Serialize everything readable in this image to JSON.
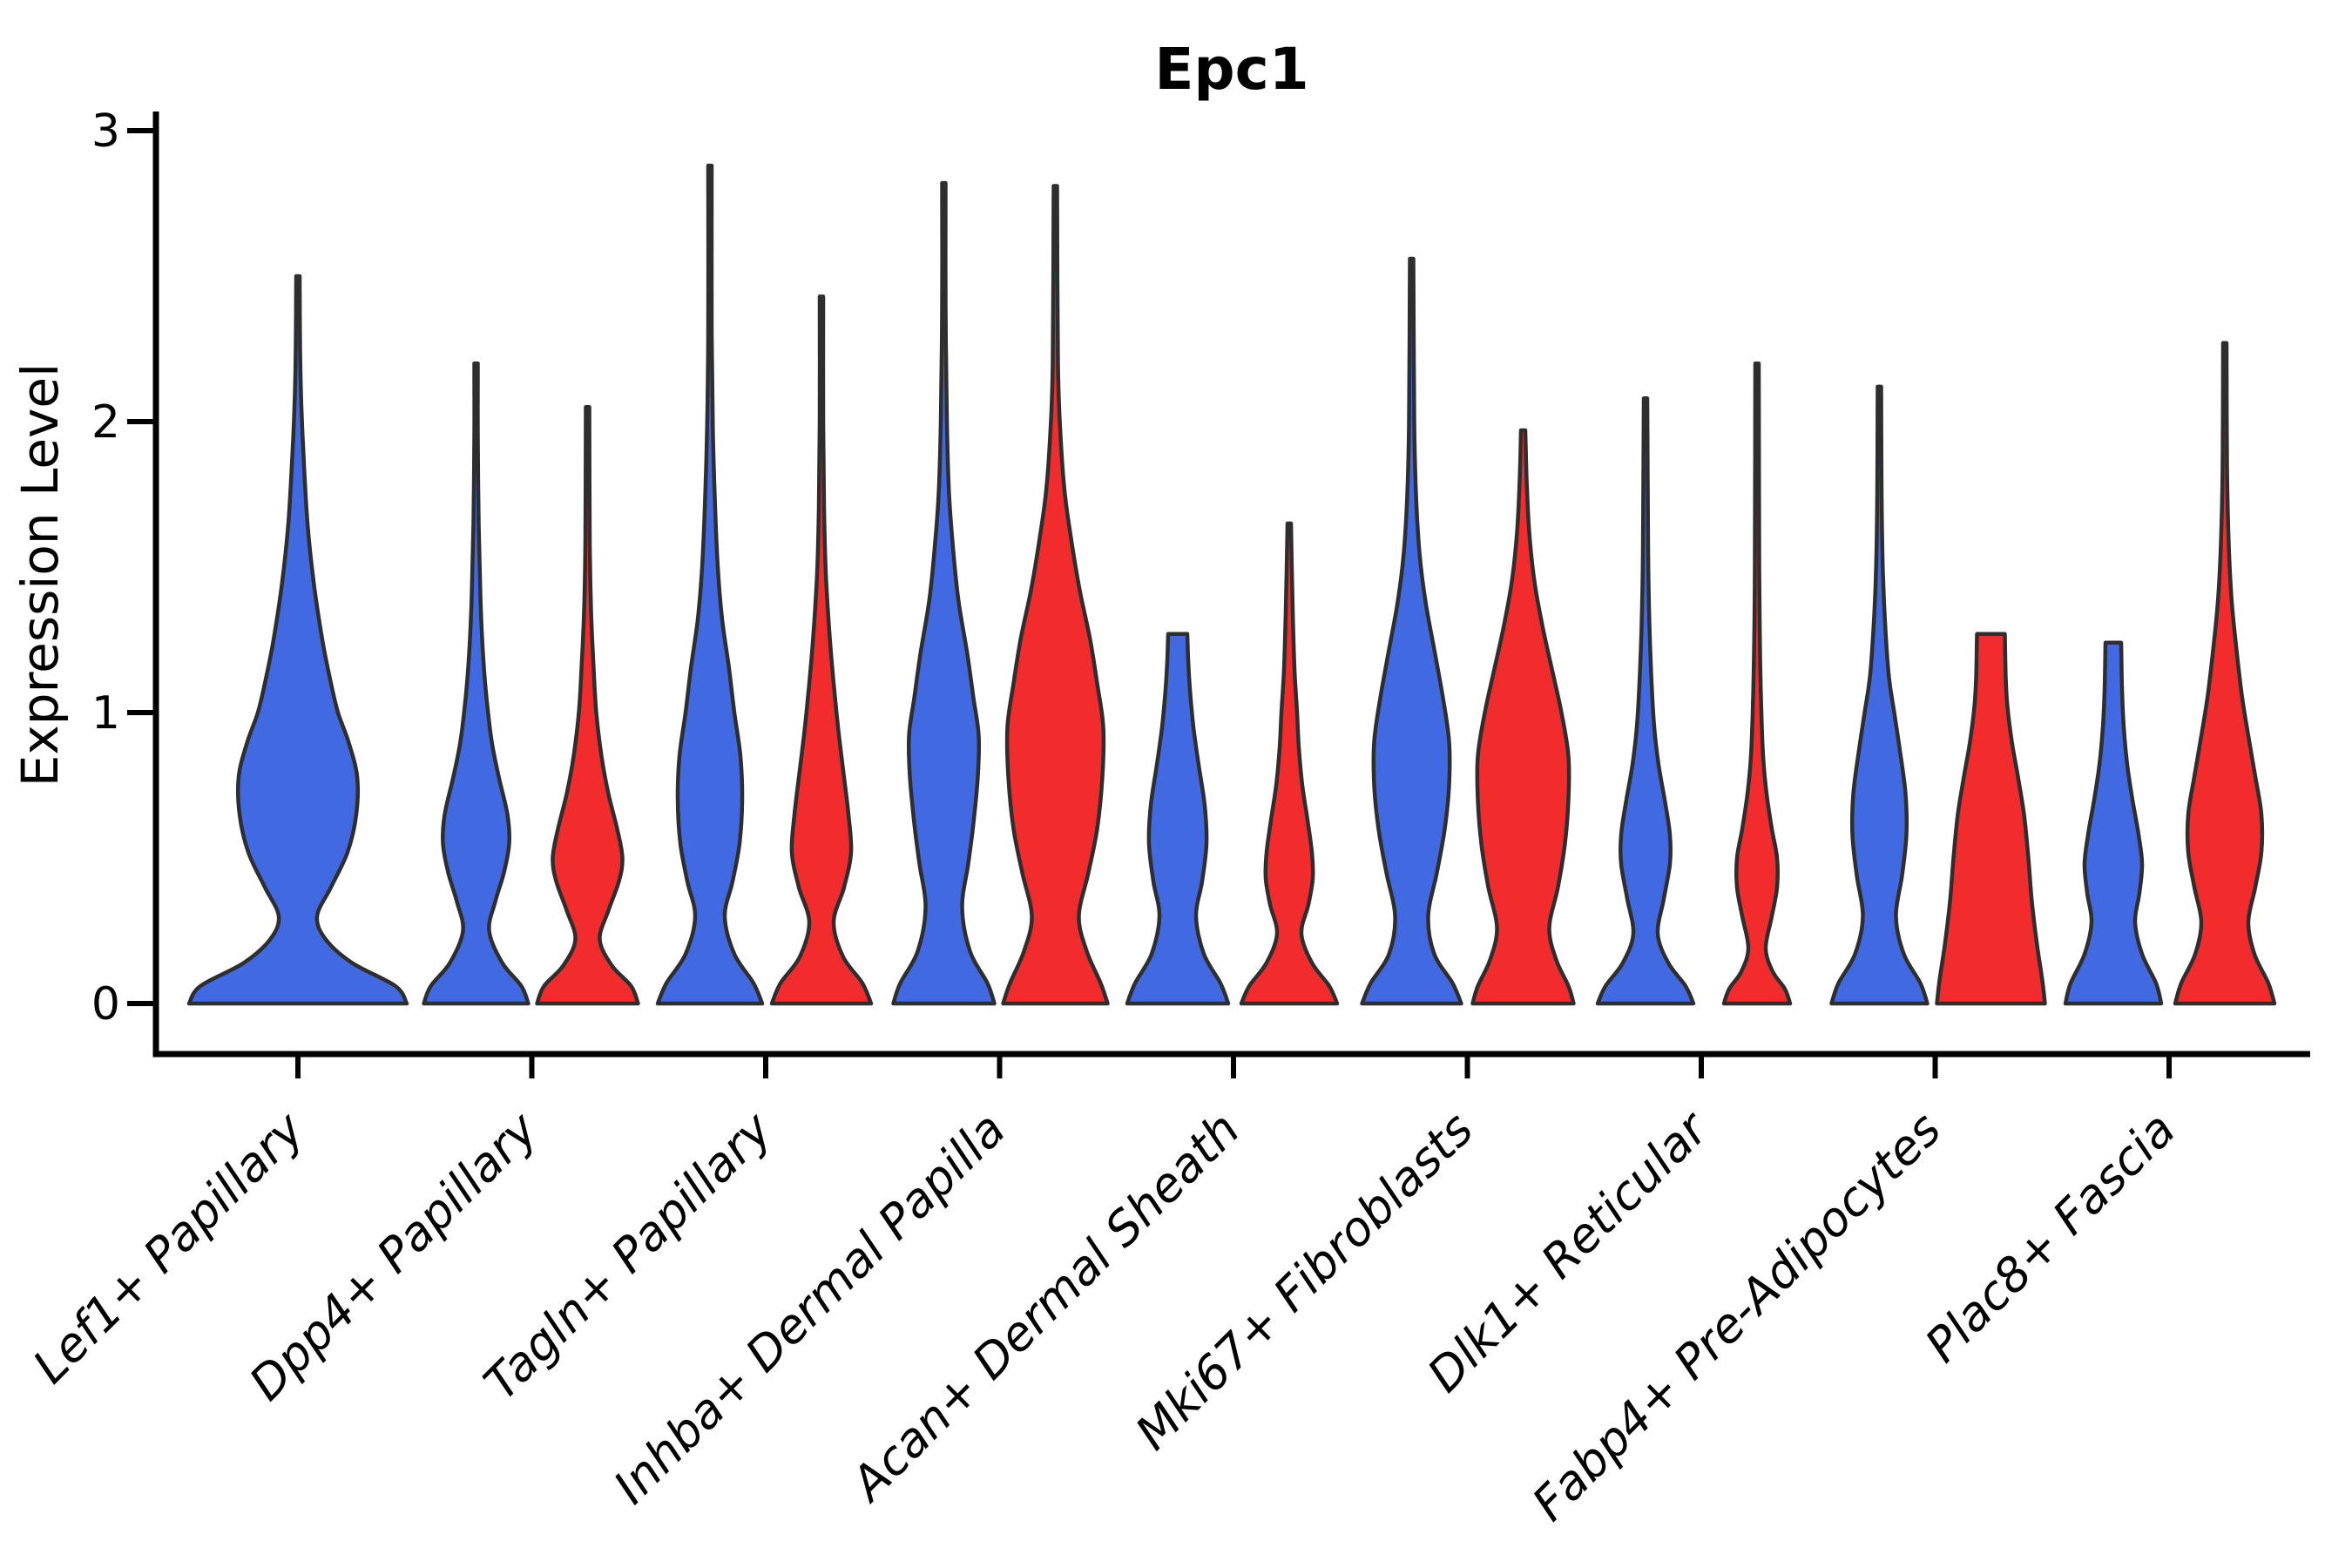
{
  "chart_data": {
    "type": "violin",
    "title": "Epc1",
    "ylabel": "Expression Level",
    "xlabel": "",
    "ylim": [
      0,
      3
    ],
    "yticks": [
      "0",
      "1",
      "2",
      "3"
    ],
    "grid": false,
    "legend": "none",
    "categories": [
      "Lef1+ Papillary",
      "Dpp4+ Papillary",
      "Tagln+ Papillary",
      "Inhba+ Dermal Papilla",
      "Acan+ Dermal Sheath",
      "Mki67+ Fibroblasts",
      "Dlk1+ Reticular",
      "Fabp4+ Pre-Adipocytes",
      "Plac8+ Fascia"
    ],
    "groups": [
      "blue",
      "red"
    ],
    "colors": {
      "blue": "#4169E1",
      "red": "#F22C2C",
      "outline": "#2E2E2E",
      "axis": "#000000",
      "background": "#FFFFFF"
    },
    "violins": [
      {
        "category": 0,
        "group": "blue",
        "side": "center",
        "max_value": 2.5,
        "flat_top": false,
        "profile": [
          [
            0,
            125
          ],
          [
            0.06,
            112
          ],
          [
            0.14,
            62
          ],
          [
            0.22,
            32
          ],
          [
            0.3,
            22
          ],
          [
            0.4,
            38
          ],
          [
            0.52,
            57
          ],
          [
            0.65,
            67
          ],
          [
            0.78,
            68
          ],
          [
            0.9,
            58
          ],
          [
            1.0,
            46
          ],
          [
            1.1,
            38
          ],
          [
            1.25,
            28
          ],
          [
            1.45,
            18
          ],
          [
            1.65,
            11
          ],
          [
            1.85,
            7
          ],
          [
            2.05,
            4
          ],
          [
            2.25,
            2.5
          ],
          [
            2.5,
            2
          ]
        ]
      },
      {
        "category": 1,
        "group": "blue",
        "side": "left",
        "max_value": 2.2,
        "flat_top": false,
        "profile": [
          [
            0,
            60
          ],
          [
            0.06,
            52
          ],
          [
            0.14,
            30
          ],
          [
            0.25,
            15
          ],
          [
            0.35,
            22
          ],
          [
            0.45,
            32
          ],
          [
            0.55,
            38
          ],
          [
            0.65,
            36
          ],
          [
            0.78,
            26
          ],
          [
            0.9,
            18
          ],
          [
            1.05,
            12
          ],
          [
            1.2,
            8
          ],
          [
            1.4,
            5
          ],
          [
            1.65,
            3
          ],
          [
            1.95,
            2
          ],
          [
            2.2,
            2
          ]
        ]
      },
      {
        "category": 1,
        "group": "red",
        "side": "right",
        "max_value": 2.05,
        "flat_top": false,
        "profile": [
          [
            0,
            58
          ],
          [
            0.06,
            50
          ],
          [
            0.13,
            28
          ],
          [
            0.22,
            14
          ],
          [
            0.32,
            24
          ],
          [
            0.42,
            36
          ],
          [
            0.5,
            40
          ],
          [
            0.6,
            34
          ],
          [
            0.72,
            24
          ],
          [
            0.85,
            16
          ],
          [
            1.0,
            10
          ],
          [
            1.15,
            7
          ],
          [
            1.35,
            4
          ],
          [
            1.6,
            2.5
          ],
          [
            2.05,
            2
          ]
        ]
      },
      {
        "category": 2,
        "group": "blue",
        "side": "left",
        "max_value": 2.88,
        "flat_top": false,
        "profile": [
          [
            0,
            60
          ],
          [
            0.07,
            50
          ],
          [
            0.17,
            28
          ],
          [
            0.3,
            17
          ],
          [
            0.42,
            26
          ],
          [
            0.55,
            34
          ],
          [
            0.7,
            37
          ],
          [
            0.85,
            35
          ],
          [
            1.0,
            28
          ],
          [
            1.15,
            22
          ],
          [
            1.32,
            14
          ],
          [
            1.5,
            9
          ],
          [
            1.7,
            6
          ],
          [
            1.95,
            3.5
          ],
          [
            2.3,
            2
          ],
          [
            2.88,
            2
          ]
        ]
      },
      {
        "category": 2,
        "group": "red",
        "side": "right",
        "max_value": 2.43,
        "flat_top": false,
        "profile": [
          [
            0,
            57
          ],
          [
            0.07,
            47
          ],
          [
            0.16,
            25
          ],
          [
            0.28,
            14
          ],
          [
            0.4,
            26
          ],
          [
            0.52,
            34
          ],
          [
            0.65,
            31
          ],
          [
            0.8,
            25
          ],
          [
            0.95,
            19
          ],
          [
            1.1,
            14
          ],
          [
            1.28,
            9
          ],
          [
            1.48,
            5
          ],
          [
            1.7,
            3
          ],
          [
            2.0,
            2
          ],
          [
            2.43,
            2
          ]
        ]
      },
      {
        "category": 3,
        "group": "blue",
        "side": "left",
        "max_value": 2.82,
        "flat_top": false,
        "profile": [
          [
            0,
            58
          ],
          [
            0.07,
            50
          ],
          [
            0.18,
            30
          ],
          [
            0.33,
            21
          ],
          [
            0.48,
            28
          ],
          [
            0.62,
            34
          ],
          [
            0.78,
            39
          ],
          [
            0.92,
            40
          ],
          [
            1.05,
            34
          ],
          [
            1.2,
            27
          ],
          [
            1.38,
            17
          ],
          [
            1.55,
            11
          ],
          [
            1.75,
            6
          ],
          [
            2.0,
            3.5
          ],
          [
            2.4,
            2
          ],
          [
            2.82,
            2
          ]
        ]
      },
      {
        "category": 3,
        "group": "red",
        "side": "right",
        "max_value": 2.81,
        "flat_top": false,
        "profile": [
          [
            0,
            60
          ],
          [
            0.07,
            52
          ],
          [
            0.18,
            36
          ],
          [
            0.3,
            27
          ],
          [
            0.45,
            38
          ],
          [
            0.6,
            48
          ],
          [
            0.78,
            54
          ],
          [
            0.95,
            55
          ],
          [
            1.1,
            48
          ],
          [
            1.25,
            40
          ],
          [
            1.42,
            28
          ],
          [
            1.58,
            19
          ],
          [
            1.75,
            11
          ],
          [
            1.95,
            6
          ],
          [
            2.2,
            3
          ],
          [
            2.81,
            2
          ]
        ]
      },
      {
        "category": 4,
        "group": "blue",
        "side": "left",
        "max_value": 1.27,
        "flat_top": true,
        "profile": [
          [
            0,
            58
          ],
          [
            0.07,
            49
          ],
          [
            0.17,
            30
          ],
          [
            0.3,
            21
          ],
          [
            0.42,
            28
          ],
          [
            0.55,
            33
          ],
          [
            0.68,
            31
          ],
          [
            0.82,
            24
          ],
          [
            0.95,
            18
          ],
          [
            1.08,
            14
          ],
          [
            1.18,
            12
          ],
          [
            1.27,
            11
          ]
        ]
      },
      {
        "category": 4,
        "group": "red",
        "side": "right",
        "max_value": 1.65,
        "flat_top": false,
        "profile": [
          [
            0,
            55
          ],
          [
            0.06,
            46
          ],
          [
            0.14,
            26
          ],
          [
            0.24,
            14
          ],
          [
            0.34,
            22
          ],
          [
            0.43,
            27
          ],
          [
            0.52,
            26
          ],
          [
            0.63,
            21
          ],
          [
            0.75,
            15
          ],
          [
            0.88,
            11
          ],
          [
            1.0,
            9
          ],
          [
            1.15,
            6
          ],
          [
            1.35,
            4
          ],
          [
            1.65,
            2
          ]
        ]
      },
      {
        "category": 5,
        "group": "blue",
        "side": "left",
        "max_value": 2.56,
        "flat_top": false,
        "profile": [
          [
            0,
            57
          ],
          [
            0.07,
            47
          ],
          [
            0.17,
            26
          ],
          [
            0.3,
            19
          ],
          [
            0.45,
            29
          ],
          [
            0.6,
            38
          ],
          [
            0.75,
            43
          ],
          [
            0.9,
            43
          ],
          [
            1.05,
            36
          ],
          [
            1.2,
            27
          ],
          [
            1.38,
            16
          ],
          [
            1.55,
            9
          ],
          [
            1.75,
            5
          ],
          [
            2.0,
            3
          ],
          [
            2.56,
            2
          ]
        ]
      },
      {
        "category": 5,
        "group": "red",
        "side": "right",
        "max_value": 1.97,
        "flat_top": false,
        "profile": [
          [
            0,
            58
          ],
          [
            0.06,
            52
          ],
          [
            0.15,
            38
          ],
          [
            0.26,
            30
          ],
          [
            0.4,
            40
          ],
          [
            0.55,
            48
          ],
          [
            0.7,
            52
          ],
          [
            0.85,
            52
          ],
          [
            1.0,
            44
          ],
          [
            1.15,
            33
          ],
          [
            1.3,
            22
          ],
          [
            1.45,
            13
          ],
          [
            1.62,
            7
          ],
          [
            1.8,
            4
          ],
          [
            1.97,
            2.5
          ]
        ]
      },
      {
        "category": 6,
        "group": "blue",
        "side": "left",
        "max_value": 2.08,
        "flat_top": false,
        "profile": [
          [
            0,
            55
          ],
          [
            0.06,
            46
          ],
          [
            0.14,
            26
          ],
          [
            0.24,
            14
          ],
          [
            0.36,
            21
          ],
          [
            0.48,
            28
          ],
          [
            0.58,
            28
          ],
          [
            0.7,
            22
          ],
          [
            0.82,
            15
          ],
          [
            0.95,
            10
          ],
          [
            1.1,
            7
          ],
          [
            1.3,
            4.5
          ],
          [
            1.55,
            3
          ],
          [
            2.08,
            2
          ]
        ]
      },
      {
        "category": 6,
        "group": "red",
        "side": "right",
        "max_value": 2.2,
        "flat_top": false,
        "profile": [
          [
            0,
            38
          ],
          [
            0.05,
            32
          ],
          [
            0.11,
            18
          ],
          [
            0.19,
            10
          ],
          [
            0.3,
            17
          ],
          [
            0.4,
            23
          ],
          [
            0.5,
            23
          ],
          [
            0.6,
            17
          ],
          [
            0.72,
            11
          ],
          [
            0.85,
            7
          ],
          [
            1.0,
            5
          ],
          [
            1.2,
            3.5
          ],
          [
            1.5,
            2.5
          ],
          [
            2.2,
            2
          ]
        ]
      },
      {
        "category": 7,
        "group": "blue",
        "side": "left",
        "max_value": 2.12,
        "flat_top": false,
        "profile": [
          [
            0,
            55
          ],
          [
            0.07,
            47
          ],
          [
            0.17,
            28
          ],
          [
            0.3,
            19
          ],
          [
            0.44,
            26
          ],
          [
            0.58,
            31
          ],
          [
            0.72,
            30
          ],
          [
            0.86,
            24
          ],
          [
            1.0,
            17
          ],
          [
            1.12,
            11
          ],
          [
            1.28,
            7
          ],
          [
            1.48,
            4
          ],
          [
            1.75,
            2.5
          ],
          [
            2.12,
            2
          ]
        ]
      },
      {
        "category": 7,
        "group": "red",
        "side": "right",
        "max_value": 1.27,
        "flat_top": true,
        "profile": [
          [
            0,
            62
          ],
          [
            0.08,
            59
          ],
          [
            0.2,
            53
          ],
          [
            0.35,
            47
          ],
          [
            0.5,
            43
          ],
          [
            0.65,
            38
          ],
          [
            0.78,
            31
          ],
          [
            0.9,
            24
          ],
          [
            1.02,
            19
          ],
          [
            1.12,
            17
          ],
          [
            1.27,
            16
          ]
        ]
      },
      {
        "category": 8,
        "group": "blue",
        "side": "left",
        "max_value": 1.24,
        "flat_top": true,
        "profile": [
          [
            0,
            55
          ],
          [
            0.07,
            49
          ],
          [
            0.17,
            33
          ],
          [
            0.28,
            25
          ],
          [
            0.38,
            30
          ],
          [
            0.48,
            33
          ],
          [
            0.58,
            29
          ],
          [
            0.7,
            22
          ],
          [
            0.82,
            16
          ],
          [
            0.95,
            12
          ],
          [
            1.08,
            10
          ],
          [
            1.24,
            9
          ]
        ]
      },
      {
        "category": 8,
        "group": "red",
        "side": "right",
        "max_value": 2.27,
        "flat_top": false,
        "profile": [
          [
            0,
            57
          ],
          [
            0.07,
            50
          ],
          [
            0.17,
            34
          ],
          [
            0.28,
            27
          ],
          [
            0.4,
            35
          ],
          [
            0.52,
            42
          ],
          [
            0.65,
            42
          ],
          [
            0.78,
            35
          ],
          [
            0.92,
            27
          ],
          [
            1.05,
            20
          ],
          [
            1.2,
            14
          ],
          [
            1.38,
            8
          ],
          [
            1.58,
            4.5
          ],
          [
            1.85,
            2.5
          ],
          [
            2.27,
            2
          ]
        ]
      }
    ]
  }
}
